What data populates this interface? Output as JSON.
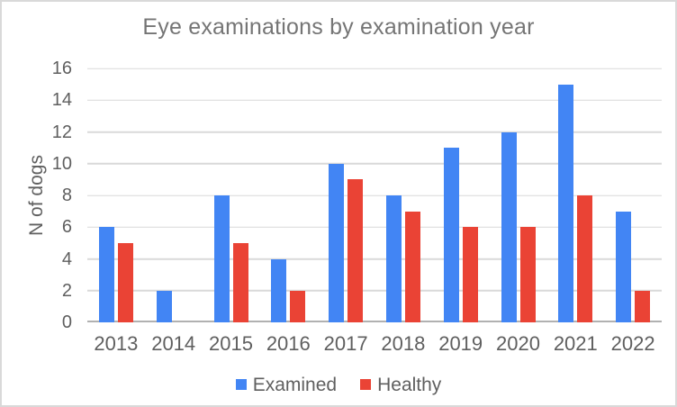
{
  "chart_data": {
    "type": "bar",
    "title": "Eye examinations by examination year",
    "xlabel": "",
    "ylabel": "N of dogs",
    "categories": [
      "2013",
      "2014",
      "2015",
      "2016",
      "2017",
      "2018",
      "2019",
      "2020",
      "2021",
      "2022"
    ],
    "series": [
      {
        "name": "Examined",
        "color": "#4285F4",
        "values": [
          6,
          2,
          8,
          4,
          10,
          8,
          11,
          12,
          15,
          7
        ]
      },
      {
        "name": "Healthy",
        "color": "#EA4335",
        "values": [
          5,
          0,
          5,
          2,
          9,
          7,
          6,
          6,
          8,
          2
        ]
      }
    ],
    "ylim": [
      0,
      16
    ],
    "ytick_step": 2,
    "yticks": [
      0,
      2,
      4,
      6,
      8,
      10,
      12,
      14,
      16
    ],
    "grid": true,
    "legend_position": "bottom",
    "colors": {
      "grid": "#d9d9d9",
      "axis_line": "#b1b1b1",
      "axis_text": "#5f5f5f",
      "title_text": "#757575",
      "background": "#ffffff",
      "frame_border": "#d9d9d9"
    }
  }
}
